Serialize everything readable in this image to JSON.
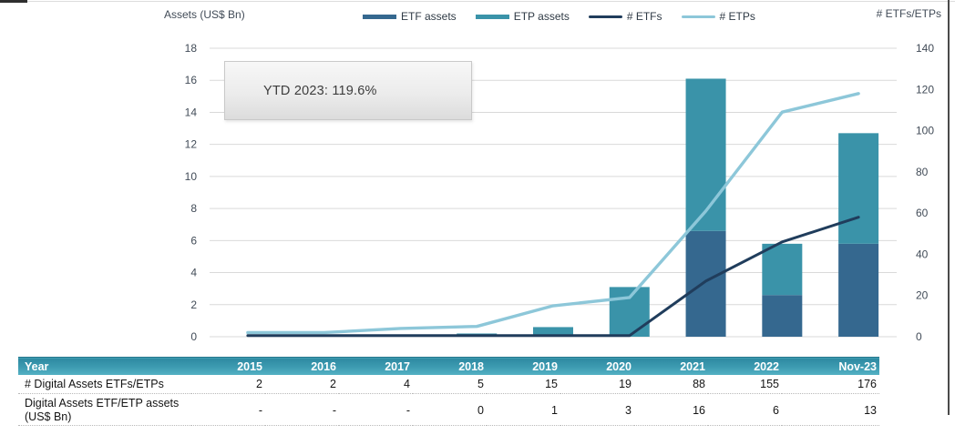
{
  "legend": [
    {
      "label": "ETF assets",
      "swatch": "bar",
      "color": "#35688f"
    },
    {
      "label": "ETP assets",
      "swatch": "bar",
      "color": "#3a93a9"
    },
    {
      "label": "# ETFs",
      "swatch": "line",
      "color": "#203d5c"
    },
    {
      "label": "# ETPs",
      "swatch": "line",
      "color": "#8dc7d9"
    }
  ],
  "chart_data": {
    "type": "combo_stacked_bar_line",
    "categories": [
      "2015",
      "2016",
      "2017",
      "2018",
      "2019",
      "2020",
      "2021",
      "2022",
      "Nov-23"
    ],
    "series": [
      {
        "name": "ETF assets",
        "type": "bar",
        "axis": "left",
        "stack": true,
        "color": "#35688f",
        "values": [
          0,
          0,
          0,
          0,
          0,
          0,
          6.6,
          2.6,
          5.8
        ]
      },
      {
        "name": "ETP assets",
        "type": "bar",
        "axis": "left",
        "stack": true,
        "color": "#3a93a9",
        "values": [
          0,
          0,
          0,
          0.2,
          0.6,
          3.1,
          9.5,
          3.2,
          6.9
        ]
      },
      {
        "name": "# ETFs",
        "type": "line",
        "axis": "right",
        "color": "#203d5c",
        "width": 3,
        "values": [
          0,
          0,
          0,
          0,
          0,
          0,
          27,
          46,
          58
        ]
      },
      {
        "name": "# ETPs",
        "type": "line",
        "axis": "right",
        "color": "#8dc7d9",
        "width": 3.4,
        "values": [
          2,
          2,
          4,
          5,
          15,
          19,
          61,
          109,
          118
        ]
      }
    ],
    "left_axis": {
      "title": "Assets (US$ Bn)",
      "min": 0,
      "max": 18,
      "step": 2,
      "ticks": [
        0,
        2,
        4,
        6,
        8,
        10,
        12,
        14,
        16,
        18
      ]
    },
    "right_axis": {
      "title": "# ETFs/ETPs",
      "min": 0,
      "max": 140,
      "step": 20,
      "ticks": [
        0,
        20,
        40,
        60,
        80,
        100,
        120,
        140
      ]
    },
    "grid": true,
    "legend_position": "top",
    "annotation": "YTD 2023: 119.6%"
  },
  "table": {
    "header": [
      "Year",
      "2015",
      "2016",
      "2017",
      "2018",
      "2019",
      "2020",
      "2021",
      "2022",
      "Nov-23"
    ],
    "rows": [
      {
        "label": "# Digital Assets ETFs/ETPs",
        "values": [
          "2",
          "2",
          "4",
          "5",
          "15",
          "19",
          "88",
          "155",
          "176"
        ]
      },
      {
        "label": "Digital Assets ETF/ETP assets (US$ Bn)",
        "values": [
          "-",
          "-",
          "-",
          "0",
          "1",
          "3",
          "16",
          "6",
          "13"
        ]
      }
    ]
  },
  "colors": {
    "etf_bar": "#35688f",
    "etp_bar": "#3a93a9",
    "etfs_line": "#203d5c",
    "etps_line": "#8dc7d9",
    "gridline": "#d9d9d9",
    "axis_text": "#414b57",
    "table_header_top": "#2d89a1",
    "table_header_bottom": "#55b2c4"
  }
}
